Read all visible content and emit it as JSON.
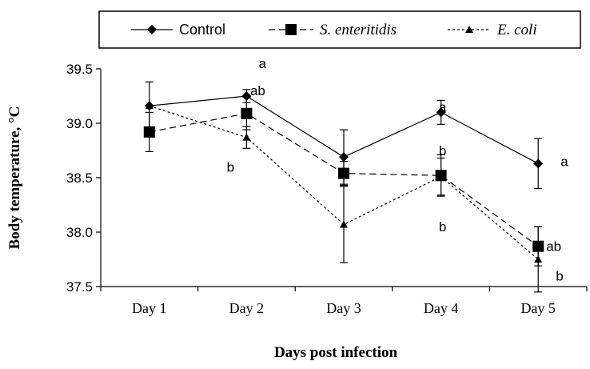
{
  "chart_data": {
    "type": "line",
    "categories": [
      "Day 1",
      "Day 2",
      "Day 3",
      "Day 4",
      "Day 5"
    ],
    "xlabel": "Days post infection",
    "ylabel": "Body temperature,  °C",
    "ylim": [
      37.5,
      39.5
    ],
    "yticks": [
      "37.5",
      "38.0",
      "38.5",
      "39.0",
      "39.5"
    ],
    "grid": false,
    "legend_position": "top",
    "series": [
      {
        "name": "Control",
        "marker": "diamond",
        "dash": "solid",
        "values": [
          39.16,
          39.25,
          38.69,
          39.1,
          38.63
        ],
        "errors": [
          0.22,
          0.06,
          0.25,
          0.11,
          0.23
        ]
      },
      {
        "name": "S. enteritidis",
        "marker": "square",
        "dash": "dashed",
        "values": [
          38.92,
          39.09,
          38.54,
          38.52,
          37.87
        ],
        "errors": [
          0.18,
          0.15,
          0.11,
          0.19,
          0.18
        ]
      },
      {
        "name": "E. coli",
        "marker": "triangle",
        "dash": "dotted",
        "values": [
          39.16,
          38.87,
          38.07,
          38.51,
          37.75
        ],
        "errors": [
          0.0,
          0.1,
          0.35,
          0.17,
          0.3
        ]
      }
    ],
    "annotations": [
      {
        "text": "a",
        "day": 2,
        "y": 39.55
      },
      {
        "text": "ab",
        "day": 2,
        "y": 39.3
      },
      {
        "text": "b",
        "day": 2,
        "y": 38.6
      },
      {
        "text": "a",
        "day": 4,
        "y": 39.15
      },
      {
        "text": "b",
        "day": 4,
        "y": 38.75
      },
      {
        "text": "b",
        "day": 4,
        "y": 38.05
      },
      {
        "text": "a",
        "day": 5,
        "y": 38.65
      },
      {
        "text": "ab",
        "day": 5,
        "y": 37.87
      },
      {
        "text": "b",
        "day": 5,
        "y": 37.6
      }
    ]
  }
}
